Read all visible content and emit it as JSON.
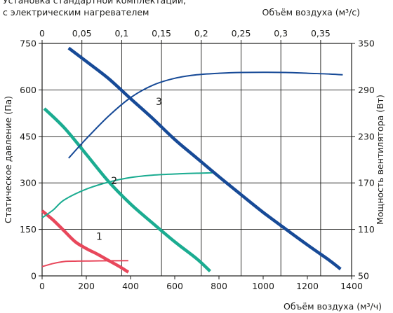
{
  "chart_data": {
    "type": "line",
    "title_lines": [
      "Установка стандартной комплектации,",
      "с электрическим нагревателем"
    ],
    "x_bottom": {
      "label": "Объём воздуха (м³/ч)",
      "range": [
        0,
        1400
      ],
      "ticks": [
        0,
        200,
        400,
        600,
        800,
        1000,
        1200,
        1400
      ]
    },
    "x_top": {
      "label": "Объём воздуха (м³/с)",
      "range": [
        0,
        0.3889
      ],
      "ticks": [
        "0",
        "0,05",
        "0,1",
        "0,15",
        "0,2",
        "0,25",
        "0,3",
        "0,35"
      ],
      "tick_values": [
        0,
        0.05,
        0.1,
        0.15,
        0.2,
        0.25,
        0.3,
        0.35
      ]
    },
    "y_left": {
      "label": "Статическое давление (Па)",
      "range": [
        0,
        750
      ],
      "ticks": [
        0,
        150,
        300,
        450,
        600,
        750
      ]
    },
    "y_right": {
      "label": "Мощность вентилятора (Вт)",
      "range": [
        50,
        350
      ],
      "ticks": [
        50,
        110,
        170,
        230,
        290,
        350
      ]
    },
    "grid": true,
    "series": [
      {
        "name": "1",
        "color": "#e8475b",
        "axis": "pressure",
        "points": [
          [
            0,
            210
          ],
          [
            50,
            180
          ],
          [
            100,
            145
          ],
          [
            150,
            110
          ],
          [
            200,
            88
          ],
          [
            250,
            70
          ],
          [
            300,
            50
          ],
          [
            350,
            30
          ],
          [
            390,
            12
          ]
        ]
      },
      {
        "name": "1",
        "color": "#e8475b",
        "axis": "power",
        "points": [
          [
            0,
            62
          ],
          [
            50,
            66
          ],
          [
            100,
            68.5
          ],
          [
            150,
            69
          ],
          [
            200,
            69.2
          ],
          [
            300,
            69.5
          ],
          [
            390,
            69.6
          ]
        ]
      },
      {
        "name": "2",
        "color": "#1bac91",
        "axis": "pressure",
        "points": [
          [
            10,
            540
          ],
          [
            100,
            478
          ],
          [
            200,
            392
          ],
          [
            300,
            305
          ],
          [
            400,
            232
          ],
          [
            500,
            170
          ],
          [
            600,
            110
          ],
          [
            700,
            55
          ],
          [
            760,
            15
          ]
        ]
      },
      {
        "name": "2",
        "color": "#1bac91",
        "axis": "power",
        "points": [
          [
            0,
            125
          ],
          [
            50,
            135
          ],
          [
            100,
            148
          ],
          [
            200,
            162
          ],
          [
            300,
            171
          ],
          [
            400,
            177
          ],
          [
            500,
            180
          ],
          [
            600,
            181.5
          ],
          [
            700,
            182.5
          ],
          [
            770,
            183
          ]
        ]
      },
      {
        "name": "3",
        "color": "#174a97",
        "axis": "pressure",
        "points": [
          [
            120,
            735
          ],
          [
            200,
            692
          ],
          [
            300,
            637
          ],
          [
            400,
            572
          ],
          [
            500,
            508
          ],
          [
            600,
            440
          ],
          [
            700,
            380
          ],
          [
            800,
            320
          ],
          [
            900,
            262
          ],
          [
            1000,
            205
          ],
          [
            1100,
            152
          ],
          [
            1200,
            100
          ],
          [
            1300,
            50
          ],
          [
            1350,
            22
          ]
        ]
      },
      {
        "name": "3",
        "color": "#174a97",
        "axis": "power",
        "points": [
          [
            120,
            202
          ],
          [
            200,
            227
          ],
          [
            300,
            256
          ],
          [
            400,
            280
          ],
          [
            500,
            296
          ],
          [
            600,
            305
          ],
          [
            700,
            309.5
          ],
          [
            800,
            311.5
          ],
          [
            900,
            312.5
          ],
          [
            1000,
            312.8
          ],
          [
            1100,
            312.5
          ],
          [
            1200,
            311.5
          ],
          [
            1300,
            310.5
          ],
          [
            1360,
            309.5
          ]
        ]
      }
    ]
  }
}
